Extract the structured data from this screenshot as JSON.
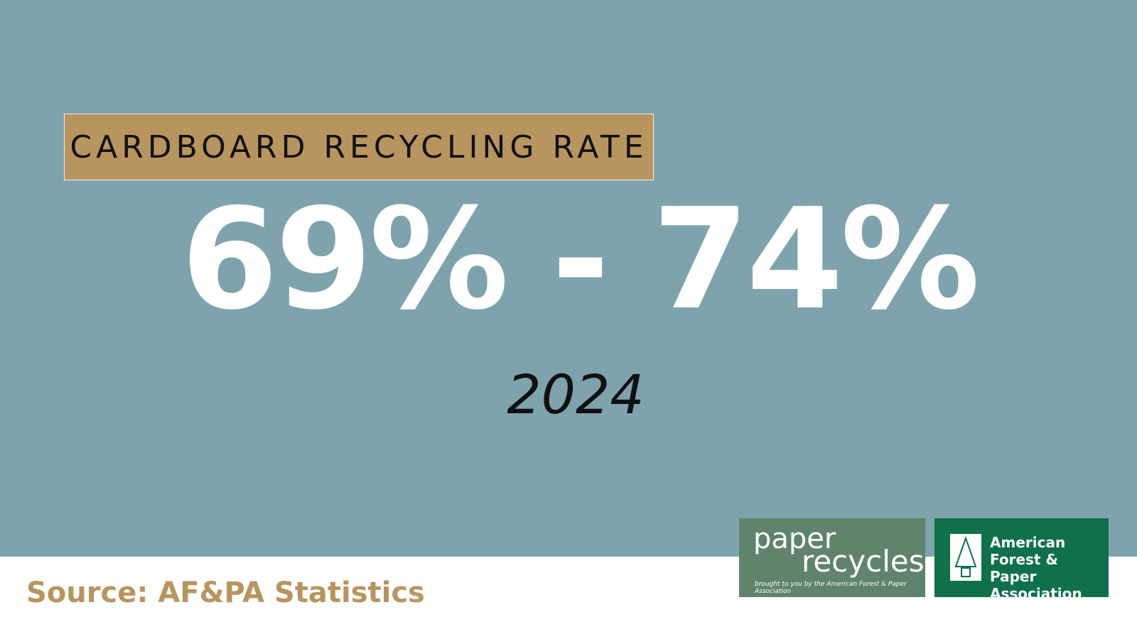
{
  "header": {
    "title": "CARDBOARD RECYCLING RATE"
  },
  "stat": {
    "value": "69% - 74%",
    "year": "2024"
  },
  "footer": {
    "source": "Source: AF&PA Statistics"
  },
  "logos": {
    "paper_recycles": {
      "line1": "paper",
      "line2": "recycles",
      "tagline": "brought to you by the American Forest & Paper Association"
    },
    "afpa": {
      "lines": [
        "American",
        "Forest & Paper",
        "Association"
      ]
    }
  }
}
